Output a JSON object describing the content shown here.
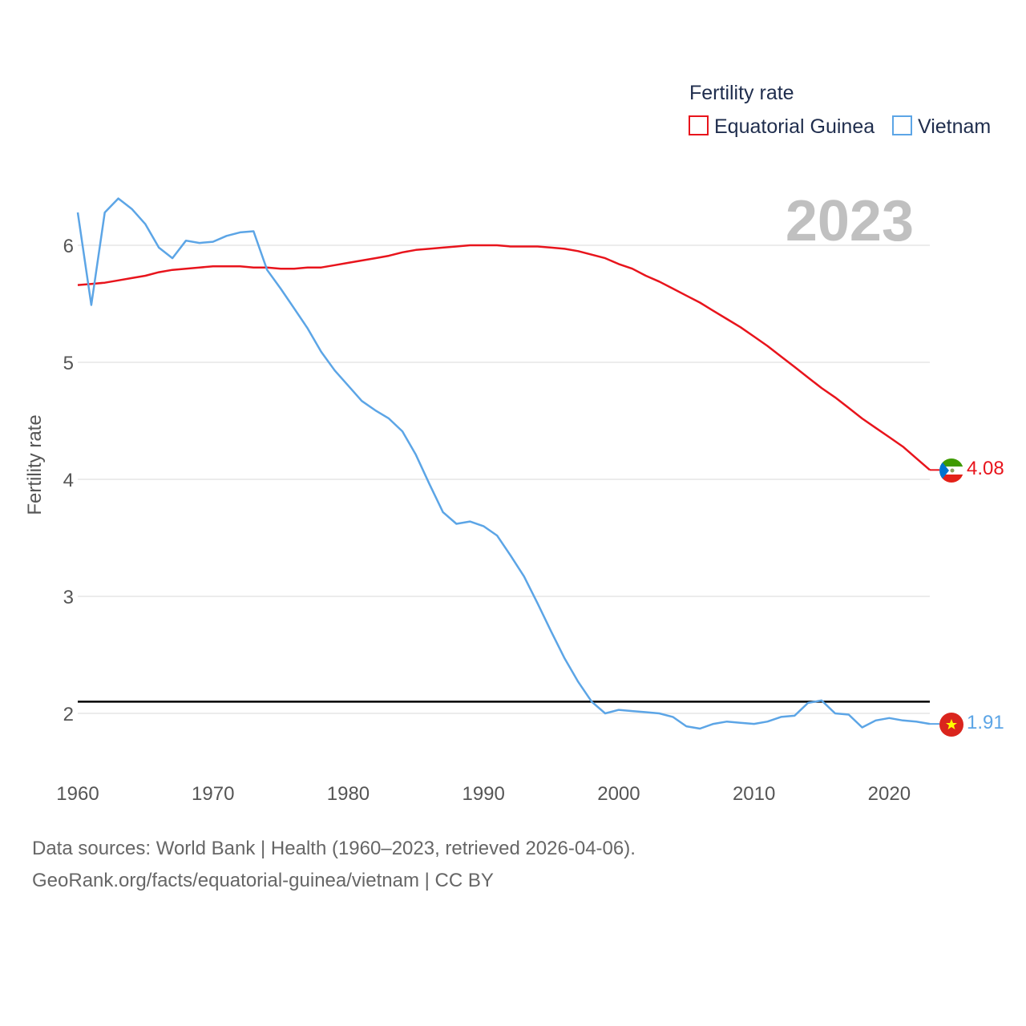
{
  "chart_data": {
    "type": "line",
    "ylabel": "Fertility rate",
    "year_stamp": "2023",
    "legend_title": "Fertility rate",
    "xlim": [
      1960,
      2023
    ],
    "ylim": [
      1.5,
      6.5
    ],
    "x_ticks": [
      1960,
      1970,
      1980,
      1990,
      2000,
      2010,
      2020
    ],
    "y_ticks": [
      2,
      3,
      4,
      5,
      6
    ],
    "reference_line": {
      "value": 2.1
    },
    "x": [
      1960,
      1961,
      1962,
      1963,
      1964,
      1965,
      1966,
      1967,
      1968,
      1969,
      1970,
      1971,
      1972,
      1973,
      1974,
      1975,
      1976,
      1977,
      1978,
      1979,
      1980,
      1981,
      1982,
      1983,
      1984,
      1985,
      1986,
      1987,
      1988,
      1989,
      1990,
      1991,
      1992,
      1993,
      1994,
      1995,
      1996,
      1997,
      1998,
      1999,
      2000,
      2001,
      2002,
      2003,
      2004,
      2005,
      2006,
      2007,
      2008,
      2009,
      2010,
      2011,
      2012,
      2013,
      2014,
      2015,
      2016,
      2017,
      2018,
      2019,
      2020,
      2021,
      2022,
      2023
    ],
    "series": [
      {
        "name": "Equatorial Guinea",
        "color": "#e8141c",
        "end_label": "4.08",
        "values": [
          5.66,
          5.67,
          5.68,
          5.7,
          5.72,
          5.74,
          5.77,
          5.79,
          5.8,
          5.81,
          5.82,
          5.82,
          5.82,
          5.81,
          5.81,
          5.8,
          5.8,
          5.81,
          5.81,
          5.83,
          5.85,
          5.87,
          5.89,
          5.91,
          5.94,
          5.96,
          5.97,
          5.98,
          5.99,
          6.0,
          6.0,
          6.0,
          5.99,
          5.99,
          5.99,
          5.98,
          5.97,
          5.95,
          5.92,
          5.89,
          5.84,
          5.8,
          5.74,
          5.69,
          5.63,
          5.57,
          5.51,
          5.44,
          5.37,
          5.3,
          5.22,
          5.14,
          5.05,
          4.96,
          4.87,
          4.78,
          4.7,
          4.61,
          4.52,
          4.44,
          4.36,
          4.28,
          4.18,
          4.08
        ]
      },
      {
        "name": "Vietnam",
        "color": "#5ca5e6",
        "end_label": "1.91",
        "values": [
          6.28,
          5.49,
          6.28,
          6.4,
          6.31,
          6.18,
          5.98,
          5.89,
          6.04,
          6.02,
          6.03,
          6.08,
          6.11,
          6.12,
          5.79,
          5.63,
          5.46,
          5.29,
          5.09,
          4.93,
          4.8,
          4.67,
          4.59,
          4.52,
          4.41,
          4.21,
          3.96,
          3.72,
          3.62,
          3.64,
          3.6,
          3.52,
          3.35,
          3.17,
          2.94,
          2.7,
          2.47,
          2.27,
          2.1,
          2.0,
          2.03,
          2.02,
          2.01,
          2.0,
          1.97,
          1.89,
          1.87,
          1.91,
          1.93,
          1.92,
          1.91,
          1.93,
          1.97,
          1.98,
          2.09,
          2.11,
          2.0,
          1.99,
          1.88,
          1.94,
          1.96,
          1.94,
          1.93,
          1.91
        ]
      }
    ]
  },
  "footer": {
    "line1": "Data sources: World Bank | Health (1960–2023, retrieved 2026-04-06).",
    "line2": "GeoRank.org/facts/equatorial-guinea/vietnam | CC BY"
  }
}
